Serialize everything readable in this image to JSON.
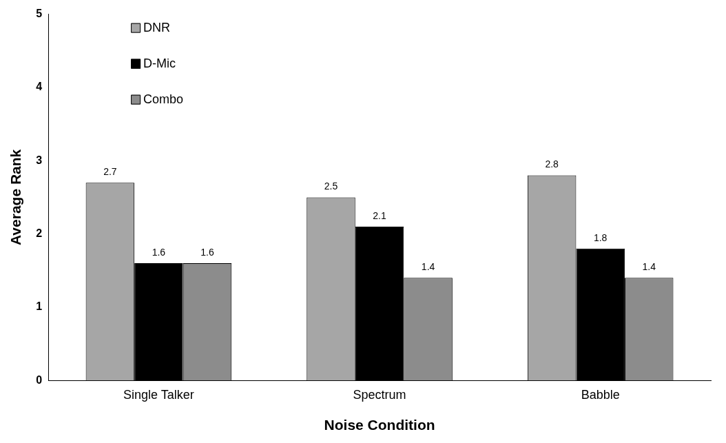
{
  "chart_data": {
    "type": "bar",
    "xlabel": "Noise Condition",
    "ylabel": "Average Rank",
    "categories": [
      "Single Talker",
      "Spectrum",
      "Babble"
    ],
    "series": [
      {
        "name": "DNR",
        "color": "#a6a6a6",
        "values": [
          2.7,
          2.5,
          2.8
        ]
      },
      {
        "name": "D-Mic",
        "color": "#000000",
        "values": [
          1.6,
          2.1,
          1.8
        ]
      },
      {
        "name": "Combo",
        "color": "#8c8c8c",
        "values": [
          1.6,
          1.4,
          1.4
        ]
      }
    ],
    "ylim": [
      0,
      5
    ],
    "yticks": [
      0,
      1,
      2,
      3,
      4,
      5
    ],
    "grid": false,
    "legend": "top left",
    "data_labels": true
  }
}
